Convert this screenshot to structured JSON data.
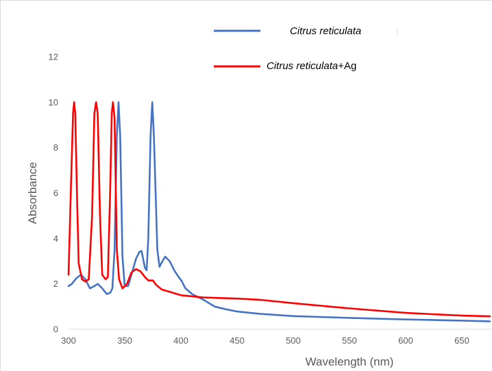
{
  "chart_data": {
    "type": "line",
    "title": "",
    "xlabel": "Wavelength (nm)",
    "ylabel": "Absorbance",
    "xlim": [
      300,
      675
    ],
    "ylim": [
      0,
      12
    ],
    "xticks": [
      300,
      350,
      400,
      450,
      500,
      550,
      600,
      650
    ],
    "yticks": [
      0,
      2,
      4,
      6,
      8,
      10,
      12
    ],
    "grid": false,
    "legend": "top-center",
    "series": [
      {
        "name": "Citrus reticulata",
        "name_italic": "Citrus reticulata",
        "name_suffix": "",
        "color": "#4472c4",
        "points": [
          [
            300,
            1.9
          ],
          [
            303,
            2.0
          ],
          [
            307,
            2.25
          ],
          [
            311,
            2.4
          ],
          [
            315,
            2.2
          ],
          [
            319,
            1.8
          ],
          [
            323,
            1.9
          ],
          [
            326,
            2.0
          ],
          [
            330,
            1.8
          ],
          [
            334,
            1.55
          ],
          [
            337,
            1.6
          ],
          [
            339,
            1.8
          ],
          [
            341,
            3.5
          ],
          [
            343,
            8.5
          ],
          [
            344.5,
            10.0
          ],
          [
            346,
            8.5
          ],
          [
            348,
            3.2
          ],
          [
            350,
            1.9
          ],
          [
            353,
            1.9
          ],
          [
            356,
            2.4
          ],
          [
            360,
            3.1
          ],
          [
            363,
            3.4
          ],
          [
            365,
            3.45
          ],
          [
            368,
            2.7
          ],
          [
            369.5,
            2.6
          ],
          [
            371,
            4.0
          ],
          [
            373,
            8.5
          ],
          [
            374.5,
            10.0
          ],
          [
            376,
            8.5
          ],
          [
            379,
            3.5
          ],
          [
            381,
            2.75
          ],
          [
            383,
            2.95
          ],
          [
            386,
            3.2
          ],
          [
            390,
            3.0
          ],
          [
            394,
            2.6
          ],
          [
            398,
            2.3
          ],
          [
            401,
            2.1
          ],
          [
            404,
            1.8
          ],
          [
            410,
            1.55
          ],
          [
            420,
            1.3
          ],
          [
            430,
            1.0
          ],
          [
            440,
            0.88
          ],
          [
            450,
            0.78
          ],
          [
            470,
            0.68
          ],
          [
            500,
            0.58
          ],
          [
            550,
            0.5
          ],
          [
            600,
            0.43
          ],
          [
            650,
            0.38
          ],
          [
            675,
            0.35
          ]
        ]
      },
      {
        "name": "Citrus reticulata+Ag",
        "name_italic": "Citrus reticulata",
        "name_suffix": "+Ag",
        "color": "#ff0000",
        "points": [
          [
            300,
            2.4
          ],
          [
            302,
            6.0
          ],
          [
            304,
            9.5
          ],
          [
            305,
            10.0
          ],
          [
            306,
            9.5
          ],
          [
            307.5,
            6.0
          ],
          [
            309,
            2.9
          ],
          [
            312,
            2.2
          ],
          [
            315,
            2.1
          ],
          [
            318,
            2.2
          ],
          [
            321,
            5.0
          ],
          [
            323,
            9.5
          ],
          [
            324.5,
            10.0
          ],
          [
            326,
            9.5
          ],
          [
            328,
            5.0
          ],
          [
            330,
            2.4
          ],
          [
            333,
            2.2
          ],
          [
            335,
            2.3
          ],
          [
            337,
            6.0
          ],
          [
            338.5,
            9.5
          ],
          [
            339.5,
            10.0
          ],
          [
            341,
            9.3
          ],
          [
            343,
            3.5
          ],
          [
            345,
            2.2
          ],
          [
            348,
            1.8
          ],
          [
            352,
            2.0
          ],
          [
            356,
            2.5
          ],
          [
            360,
            2.65
          ],
          [
            364,
            2.55
          ],
          [
            368,
            2.3
          ],
          [
            371,
            2.15
          ],
          [
            375,
            2.15
          ],
          [
            378,
            1.95
          ],
          [
            383,
            1.75
          ],
          [
            390,
            1.65
          ],
          [
            400,
            1.5
          ],
          [
            420,
            1.4
          ],
          [
            450,
            1.35
          ],
          [
            470,
            1.3
          ],
          [
            500,
            1.15
          ],
          [
            550,
            0.92
          ],
          [
            600,
            0.72
          ],
          [
            650,
            0.6
          ],
          [
            675,
            0.57
          ]
        ]
      }
    ]
  }
}
